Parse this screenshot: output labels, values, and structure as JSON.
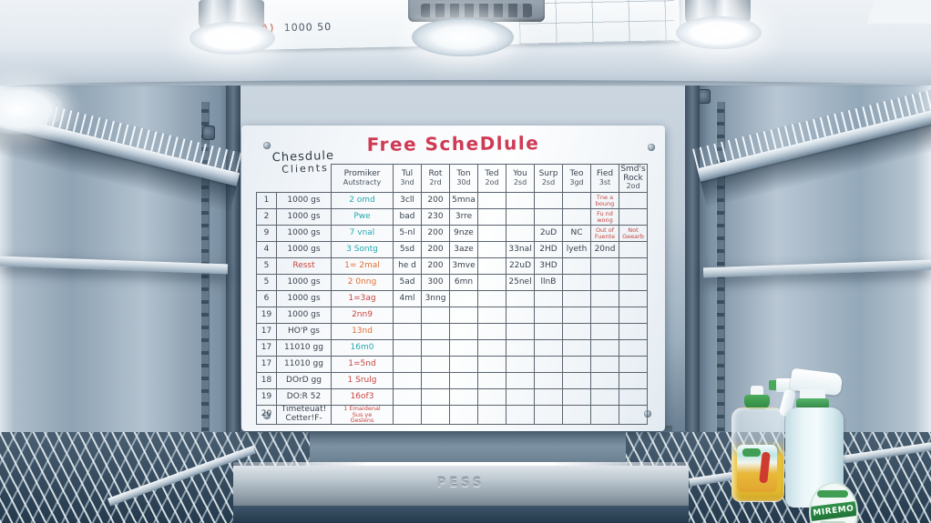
{
  "colors": {
    "title_red": "#cf3a55",
    "row_number_red": "#b5403c",
    "ink_black": "#39424e",
    "ink_teal": "#27a9ae",
    "ink_orange": "#e06f35",
    "ink_red": "#c8443f",
    "steel_light": "#c6d1dc",
    "steel_dark": "#5f7687",
    "label_green": "#2f9148"
  },
  "scene": {
    "top_note_mark": "A)",
    "top_note": "1000 50",
    "brand_plate": "PESS"
  },
  "whiteboard": {
    "title": "Free ScheDlule",
    "corner_label": {
      "line1": "Chesdule",
      "line2": "Clients"
    },
    "columns": [
      {
        "day": "Promiker",
        "date": "Autstracty"
      },
      {
        "day": "Tul",
        "date": "3nd"
      },
      {
        "day": "Rot",
        "date": "2rd"
      },
      {
        "day": "Ton",
        "date": "30d"
      },
      {
        "day": "Ted",
        "date": "2od"
      },
      {
        "day": "You",
        "date": "2sd"
      },
      {
        "day": "Surp",
        "date": "2sd"
      },
      {
        "day": "Teo",
        "date": "3gd"
      },
      {
        "day": "Fied",
        "date": "3st"
      },
      {
        "day": "Smd's Rock",
        "date": "2od"
      }
    ],
    "rows": [
      {
        "num": "1",
        "client": "1000 gs",
        "cells": [
          [
            "2 omd",
            "t"
          ],
          "3cll",
          "200",
          "5mna",
          "",
          "",
          "",
          "",
          [
            "Tne a\nboung",
            "n"
          ],
          ""
        ]
      },
      {
        "num": "2",
        "client": "1000 gs",
        "cells": [
          [
            "Pwe",
            "t"
          ],
          "bad",
          "230",
          "3rre",
          "",
          "",
          "",
          "",
          [
            "Fu nd\nwong",
            "n"
          ],
          ""
        ]
      },
      {
        "num": "9",
        "client": "1000 gs",
        "cells": [
          [
            "7 vnal",
            "t"
          ],
          "5-nl",
          "200",
          "9nze",
          "",
          "",
          "2uD",
          "NC",
          [
            "Out of\nFuente",
            "n"
          ],
          [
            "Not\nGeearb",
            "n"
          ]
        ]
      },
      {
        "num": "4",
        "client": "1000 gs",
        "cells": [
          [
            "3 Sontg",
            "t"
          ],
          "5sd",
          "200",
          "3aze",
          "",
          "33nal",
          "2HD",
          "lyeth",
          "20nd",
          ""
        ]
      },
      {
        "num": "5",
        "client": "Resst",
        "client_c": "r",
        "cells": [
          [
            "1= 2mal",
            "o"
          ],
          "he d",
          "200",
          "3mve",
          "",
          "22uD",
          "3HD",
          "",
          "",
          ""
        ]
      },
      {
        "num": "5",
        "client": "1000 gs",
        "cells": [
          [
            "2 0nng",
            "o"
          ],
          "5ad",
          "300",
          "6mn",
          "",
          "25nel",
          "llnB",
          "",
          "",
          ""
        ]
      },
      {
        "num": "6",
        "client": "1000 gs",
        "cells": [
          [
            "1=3ag",
            "r"
          ],
          "4ml",
          "3nng",
          "",
          "",
          "",
          "",
          "",
          "",
          ""
        ]
      },
      {
        "num": "19",
        "client": "1000 gs",
        "cells": [
          [
            "2nn9",
            "r"
          ],
          "",
          "",
          "",
          "",
          "",
          "",
          "",
          "",
          ""
        ]
      },
      {
        "num": "17",
        "client": "HO'P gs",
        "cells": [
          [
            "13nd",
            "o"
          ],
          "",
          "",
          "",
          "",
          "",
          "",
          "",
          "",
          ""
        ]
      },
      {
        "num": "17",
        "client": "11010 gg",
        "cells": [
          [
            "16m0",
            "t"
          ],
          "",
          "",
          "",
          "",
          "",
          "",
          "",
          "",
          ""
        ]
      },
      {
        "num": "17",
        "client": "11010 gg",
        "cells": [
          [
            "1=5nd",
            "r"
          ],
          "",
          "",
          "",
          "",
          "",
          "",
          "",
          "",
          ""
        ]
      },
      {
        "num": "18",
        "client": "DOrD gg",
        "cells": [
          [
            "1 Srulg",
            "r"
          ],
          "",
          "",
          "",
          "",
          "",
          "",
          "",
          "",
          ""
        ]
      },
      {
        "num": "19",
        "client": "DO:R 52",
        "cells": [
          [
            "16of3",
            "r"
          ],
          "",
          "",
          "",
          "",
          "",
          "",
          "",
          "",
          ""
        ]
      },
      {
        "num": "20",
        "client": "Timeteuat!\nCetter!F-",
        "cells": [
          [
            "1 Emaidenal\nSus ye\nGeslens",
            "n"
          ],
          "",
          "",
          "",
          "",
          "",
          "",
          "",
          "",
          ""
        ]
      }
    ]
  },
  "bottles": {
    "spray_label": "MIREMO"
  }
}
